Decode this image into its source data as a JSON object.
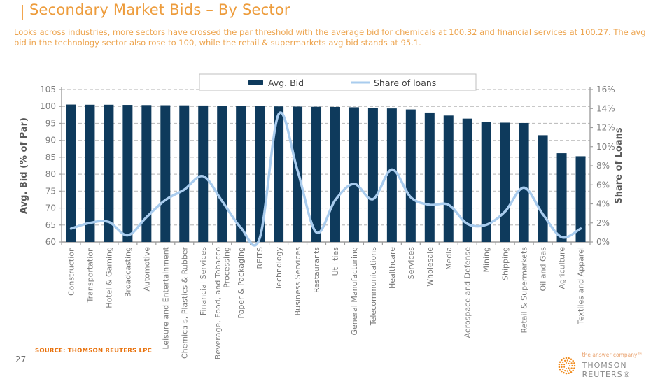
{
  "slide": {
    "title": "Secondary Market Bids – By Sector",
    "subtitle": "Looks across industries, more sectors have crossed the par threshold with the average bid for chemicals at 100.32 and financial services at 100.27. The avg bid in the technology sector also rose to 100, while the retail & supermarkets avg bid stands at 95.1.",
    "source": "SOURCE: THOMSON REUTERS LPC",
    "page_number": "27",
    "logo": {
      "tagline": "the answer company™",
      "brand": "THOMSON REUTERS®"
    }
  },
  "colors": {
    "title_orange": "#ED9C3C",
    "subtitle_orange": "#EDA44E",
    "source_orange": "#E8700A",
    "bar_navy": "#0E3A5C",
    "line_blue": "#A9CCEE",
    "gridline_gray": "#C0C0C0",
    "axis_gray": "#9E9E9E",
    "tick_label_gray": "#7F7F7F",
    "category_label_gray": "#7A7A7A",
    "axis_title_gray": "#595959",
    "legend_text": "#404040",
    "legend_border": "#BFBFBF",
    "logo_orange": "#F08B1D"
  },
  "chart_data": {
    "type": "bar",
    "subtype": "combo bar+line, dual axis",
    "grid": "horizontal dashed",
    "categories": [
      "Construction",
      "Transportation",
      "Hotel & Gaming",
      "Broadcasting",
      "Automotive",
      "Leisure and Entertainment",
      "Chemicals, Plastics & Rubber",
      "Financial Services",
      "Beverage, Food, and Tobacco\nProcessing",
      "Paper & Packaging",
      "REITS",
      "Technology",
      "Business Services",
      "Restaurants",
      "Utilities",
      "General Manufacturing",
      "Telecommunications",
      "Healthcare",
      "Services",
      "Wholesale",
      "Media",
      "Aerospace and Defense",
      "Mining",
      "Shipping",
      "Retail & Supermarkets",
      "Oil and Gas",
      "Agriculture",
      "Textiles and Apparel"
    ],
    "series": [
      {
        "name": "Avg. Bid",
        "type": "bar",
        "axis": "left",
        "color": "#0E3A5C",
        "values": [
          100.55,
          100.5,
          100.5,
          100.45,
          100.4,
          100.35,
          100.32,
          100.27,
          100.2,
          100.15,
          100.1,
          100.0,
          99.95,
          99.9,
          99.85,
          99.75,
          99.6,
          99.4,
          99.1,
          98.2,
          97.3,
          96.4,
          95.4,
          95.2,
          95.1,
          91.5,
          86.2,
          85.3
        ]
      },
      {
        "name": "Share of loans",
        "type": "line",
        "axis": "right",
        "color": "#A9CCEE",
        "values": [
          1.4,
          2.0,
          2.1,
          0.7,
          2.6,
          4.4,
          5.5,
          6.9,
          4.3,
          1.5,
          0.4,
          13.4,
          7.5,
          1.0,
          4.4,
          6.1,
          4.5,
          7.6,
          4.7,
          3.9,
          3.9,
          1.9,
          1.8,
          3.2,
          5.7,
          2.9,
          0.5,
          1.4
        ]
      }
    ],
    "left_axis": {
      "title": "Avg. Bid (% of Par)",
      "min": 60,
      "max": 105,
      "step": 5,
      "tick_labels": [
        "105",
        "100",
        "95",
        "90",
        "85",
        "80",
        "75",
        "70",
        "65",
        "60"
      ]
    },
    "right_axis": {
      "title": "Share of Loans",
      "min": 0,
      "max": 16,
      "step": 2,
      "tick_labels": [
        "16%",
        "14%",
        "12%",
        "10%",
        "8%",
        "6%",
        "4%",
        "2%",
        "0%"
      ]
    },
    "legend": {
      "position": "top",
      "entries": [
        "Avg. Bid",
        "Share of loans"
      ]
    }
  }
}
